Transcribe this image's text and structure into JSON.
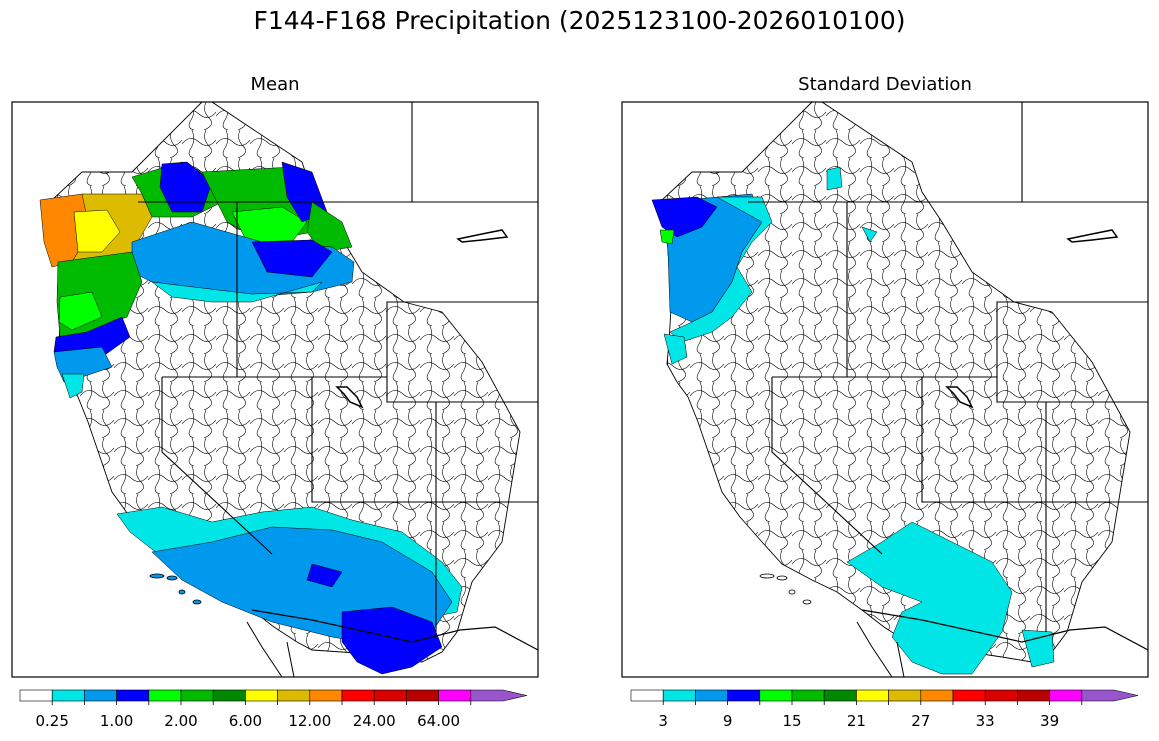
{
  "figure": {
    "title": "F144-F168 Precipitation (2025123100-2026010100)"
  },
  "panels": [
    {
      "title": "Mean",
      "colorbar": {
        "colors": [
          "#ffffff",
          "#00e5e5",
          "#0099ee",
          "#0000ff",
          "#00ff00",
          "#00bb00",
          "#008800",
          "#ffff00",
          "#ddbb00",
          "#ff8800",
          "#ff0000",
          "#dd0000",
          "#bb0000",
          "#ff00ff",
          "#9955cc"
        ],
        "tick_labels": [
          "0.25",
          "1.00",
          "2.00",
          "6.00",
          "12.00",
          "24.00",
          "64.00"
        ],
        "extend": "max"
      }
    },
    {
      "title": "Standard Deviation",
      "colorbar": {
        "colors": [
          "#ffffff",
          "#00e5e5",
          "#0099ee",
          "#0000ff",
          "#00ff00",
          "#00bb00",
          "#008800",
          "#ffff00",
          "#ddbb00",
          "#ff8800",
          "#ff0000",
          "#dd0000",
          "#bb0000",
          "#ff00ff",
          "#9955cc"
        ],
        "tick_labels": [
          "3",
          "9",
          "15",
          "21",
          "27",
          "33",
          "39"
        ],
        "extend": "max"
      }
    }
  ]
}
